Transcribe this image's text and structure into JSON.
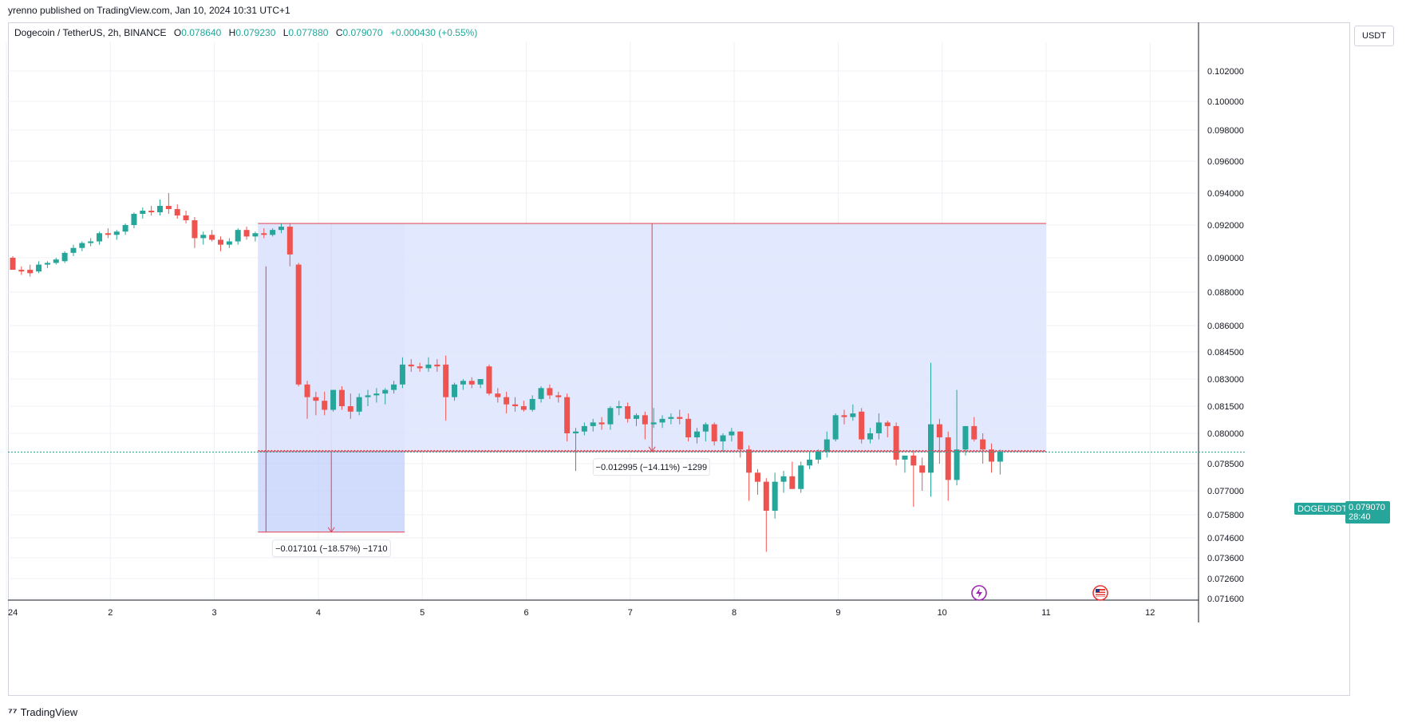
{
  "header": {
    "published": "yrenno published on TradingView.com, Jan 10, 2024 10:31 UTC+1"
  },
  "legend": {
    "symbol": "Dogecoin / TetherUS, 2h, BINANCE",
    "o_label": "O",
    "o_value": "0.078640",
    "h_label": "H",
    "h_value": "0.079230",
    "l_label": "L",
    "l_value": "0.077880",
    "c_label": "C",
    "c_value": "0.079070",
    "change": "+0.000430 (+0.55%)"
  },
  "axis": {
    "currency": "USDT",
    "symbol_tag": "DOGEUSDT",
    "last_price": "0.079070",
    "countdown": "28:40"
  },
  "footer": {
    "brand": "TradingView"
  },
  "colors": {
    "up": "#26a69a",
    "down": "#ef5350",
    "range_fill_light": "#dfe6fd",
    "range_fill_dark": "#c2cffb",
    "range_line": "#e04050",
    "grid": "#eef0f4"
  },
  "icons": [
    "lightning-icon",
    "us-flag-icon",
    "tradingview-logo-icon"
  ],
  "chart_data": {
    "type": "candlestick",
    "x_ticks": [
      {
        "label": "24",
        "day": 1
      },
      {
        "label": "2",
        "day": 2
      },
      {
        "label": "3",
        "day": 3
      },
      {
        "label": "4",
        "day": 4
      },
      {
        "label": "5",
        "day": 5
      },
      {
        "label": "6",
        "day": 6
      },
      {
        "label": "7",
        "day": 7
      },
      {
        "label": "8",
        "day": 8
      },
      {
        "label": "9",
        "day": 9
      },
      {
        "label": "10",
        "day": 10
      },
      {
        "label": "11",
        "day": 11
      },
      {
        "label": "12",
        "day": 12
      }
    ],
    "y_ticks": [
      0.102,
      0.1,
      0.098,
      0.096,
      0.094,
      0.092,
      0.09,
      0.088,
      0.086,
      0.0845,
      0.083,
      0.0815,
      0.08,
      0.0785,
      0.077,
      0.0758,
      0.0746,
      0.0736,
      0.0726,
      0.0716
    ],
    "y_tick_labels": [
      "0.102000",
      "0.100000",
      "0.098000",
      "0.096000",
      "0.094000",
      "0.092000",
      "0.090000",
      "0.088000",
      "0.086000",
      "0.084500",
      "0.083000",
      "0.081500",
      "0.080000",
      "0.078500",
      "0.077000",
      "0.075800",
      "0.074600",
      "0.073600",
      "0.072600",
      "0.071600"
    ],
    "candles": [
      {
        "o": 0.09,
        "h": 0.0901,
        "l": 0.0895,
        "c": 0.0893
      },
      {
        "o": 0.0893,
        "h": 0.0895,
        "l": 0.089,
        "c": 0.0892
      },
      {
        "o": 0.0893,
        "h": 0.0896,
        "l": 0.0889,
        "c": 0.0891
      },
      {
        "o": 0.0892,
        "h": 0.0898,
        "l": 0.0891,
        "c": 0.0896
      },
      {
        "o": 0.0896,
        "h": 0.0898,
        "l": 0.0894,
        "c": 0.0897
      },
      {
        "o": 0.0897,
        "h": 0.09,
        "l": 0.0896,
        "c": 0.0899
      },
      {
        "o": 0.0898,
        "h": 0.0904,
        "l": 0.0897,
        "c": 0.0903
      },
      {
        "o": 0.0903,
        "h": 0.0908,
        "l": 0.0901,
        "c": 0.0906
      },
      {
        "o": 0.0906,
        "h": 0.091,
        "l": 0.0904,
        "c": 0.0909
      },
      {
        "o": 0.0909,
        "h": 0.0912,
        "l": 0.0907,
        "c": 0.091
      },
      {
        "o": 0.091,
        "h": 0.0916,
        "l": 0.0908,
        "c": 0.0915
      },
      {
        "o": 0.0915,
        "h": 0.0918,
        "l": 0.0912,
        "c": 0.0914
      },
      {
        "o": 0.0914,
        "h": 0.0917,
        "l": 0.0911,
        "c": 0.0916
      },
      {
        "o": 0.0916,
        "h": 0.0921,
        "l": 0.0914,
        "c": 0.092
      },
      {
        "o": 0.092,
        "h": 0.0928,
        "l": 0.0918,
        "c": 0.0927
      },
      {
        "o": 0.0927,
        "h": 0.0931,
        "l": 0.0924,
        "c": 0.0929
      },
      {
        "o": 0.0929,
        "h": 0.0932,
        "l": 0.0926,
        "c": 0.0928
      },
      {
        "o": 0.0928,
        "h": 0.0936,
        "l": 0.0926,
        "c": 0.0932
      },
      {
        "o": 0.0932,
        "h": 0.094,
        "l": 0.0927,
        "c": 0.093
      },
      {
        "o": 0.093,
        "h": 0.0933,
        "l": 0.0924,
        "c": 0.0926
      },
      {
        "o": 0.0926,
        "h": 0.0929,
        "l": 0.0921,
        "c": 0.0923
      },
      {
        "o": 0.0923,
        "h": 0.0925,
        "l": 0.0906,
        "c": 0.0912
      },
      {
        "o": 0.0912,
        "h": 0.0916,
        "l": 0.0908,
        "c": 0.0914
      },
      {
        "o": 0.0914,
        "h": 0.0917,
        "l": 0.091,
        "c": 0.0911
      },
      {
        "o": 0.0911,
        "h": 0.0913,
        "l": 0.0904,
        "c": 0.0908
      },
      {
        "o": 0.0908,
        "h": 0.0912,
        "l": 0.0906,
        "c": 0.091
      },
      {
        "o": 0.091,
        "h": 0.0918,
        "l": 0.0908,
        "c": 0.0917
      },
      {
        "o": 0.0917,
        "h": 0.0919,
        "l": 0.0911,
        "c": 0.0913
      },
      {
        "o": 0.0913,
        "h": 0.0916,
        "l": 0.091,
        "c": 0.0915
      },
      {
        "o": 0.0915,
        "h": 0.0918,
        "l": 0.0912,
        "c": 0.0914
      },
      {
        "o": 0.0914,
        "h": 0.0918,
        "l": 0.0913,
        "c": 0.0917
      },
      {
        "o": 0.0917,
        "h": 0.0921,
        "l": 0.0915,
        "c": 0.0919
      },
      {
        "o": 0.0919,
        "h": 0.0921,
        "l": 0.0895,
        "c": 0.0902
      },
      {
        "o": 0.0896,
        "h": 0.0897,
        "l": 0.0826,
        "c": 0.0827
      },
      {
        "o": 0.0827,
        "h": 0.0829,
        "l": 0.0808,
        "c": 0.082
      },
      {
        "o": 0.082,
        "h": 0.0823,
        "l": 0.081,
        "c": 0.0818
      },
      {
        "o": 0.0818,
        "h": 0.0823,
        "l": 0.081,
        "c": 0.0813
      },
      {
        "o": 0.0813,
        "h": 0.0824,
        "l": 0.0812,
        "c": 0.0824
      },
      {
        "o": 0.0824,
        "h": 0.0826,
        "l": 0.0813,
        "c": 0.0815
      },
      {
        "o": 0.0815,
        "h": 0.0822,
        "l": 0.0808,
        "c": 0.0812
      },
      {
        "o": 0.0812,
        "h": 0.0822,
        "l": 0.081,
        "c": 0.082
      },
      {
        "o": 0.082,
        "h": 0.0824,
        "l": 0.0815,
        "c": 0.0821
      },
      {
        "o": 0.0821,
        "h": 0.0825,
        "l": 0.0817,
        "c": 0.0822
      },
      {
        "o": 0.0822,
        "h": 0.0825,
        "l": 0.0816,
        "c": 0.0824
      },
      {
        "o": 0.0824,
        "h": 0.0829,
        "l": 0.0822,
        "c": 0.0827
      },
      {
        "o": 0.0827,
        "h": 0.0842,
        "l": 0.0825,
        "c": 0.0838
      },
      {
        "o": 0.0838,
        "h": 0.0841,
        "l": 0.0834,
        "c": 0.0837
      },
      {
        "o": 0.0837,
        "h": 0.0839,
        "l": 0.0834,
        "c": 0.0836
      },
      {
        "o": 0.0836,
        "h": 0.0842,
        "l": 0.0834,
        "c": 0.0838
      },
      {
        "o": 0.0838,
        "h": 0.0841,
        "l": 0.0834,
        "c": 0.0837
      },
      {
        "o": 0.0838,
        "h": 0.0843,
        "l": 0.0807,
        "c": 0.082
      },
      {
        "o": 0.082,
        "h": 0.0828,
        "l": 0.0818,
        "c": 0.0827
      },
      {
        "o": 0.0827,
        "h": 0.083,
        "l": 0.0824,
        "c": 0.0829
      },
      {
        "o": 0.0829,
        "h": 0.0831,
        "l": 0.0825,
        "c": 0.0827
      },
      {
        "o": 0.0827,
        "h": 0.083,
        "l": 0.0825,
        "c": 0.083
      },
      {
        "o": 0.0837,
        "h": 0.0838,
        "l": 0.0821,
        "c": 0.0822
      },
      {
        "o": 0.0822,
        "h": 0.0825,
        "l": 0.0817,
        "c": 0.082
      },
      {
        "o": 0.082,
        "h": 0.0823,
        "l": 0.0811,
        "c": 0.0816
      },
      {
        "o": 0.0816,
        "h": 0.082,
        "l": 0.0812,
        "c": 0.0815
      },
      {
        "o": 0.0815,
        "h": 0.0818,
        "l": 0.0812,
        "c": 0.0813
      },
      {
        "o": 0.0813,
        "h": 0.0821,
        "l": 0.0812,
        "c": 0.0819
      },
      {
        "o": 0.0819,
        "h": 0.0826,
        "l": 0.0817,
        "c": 0.0825
      },
      {
        "o": 0.0825,
        "h": 0.0827,
        "l": 0.0819,
        "c": 0.0821
      },
      {
        "o": 0.0821,
        "h": 0.0823,
        "l": 0.0817,
        "c": 0.082
      },
      {
        "o": 0.082,
        "h": 0.0822,
        "l": 0.0796,
        "c": 0.08
      },
      {
        "o": 0.08,
        "h": 0.0803,
        "l": 0.0781,
        "c": 0.0801
      },
      {
        "o": 0.0801,
        "h": 0.0806,
        "l": 0.0799,
        "c": 0.0804
      },
      {
        "o": 0.0804,
        "h": 0.0808,
        "l": 0.0801,
        "c": 0.0806
      },
      {
        "o": 0.0806,
        "h": 0.0809,
        "l": 0.0802,
        "c": 0.0805
      },
      {
        "o": 0.0805,
        "h": 0.0815,
        "l": 0.0802,
        "c": 0.0814
      },
      {
        "o": 0.0814,
        "h": 0.0818,
        "l": 0.081,
        "c": 0.0815
      },
      {
        "o": 0.0815,
        "h": 0.0817,
        "l": 0.0806,
        "c": 0.0808
      },
      {
        "o": 0.0808,
        "h": 0.0811,
        "l": 0.0804,
        "c": 0.081
      },
      {
        "o": 0.081,
        "h": 0.0812,
        "l": 0.0797,
        "c": 0.0805
      },
      {
        "o": 0.0805,
        "h": 0.0814,
        "l": 0.0803,
        "c": 0.0806
      },
      {
        "o": 0.0806,
        "h": 0.081,
        "l": 0.0803,
        "c": 0.0808
      },
      {
        "o": 0.0808,
        "h": 0.0811,
        "l": 0.0805,
        "c": 0.0809
      },
      {
        "o": 0.0809,
        "h": 0.0813,
        "l": 0.0805,
        "c": 0.0808
      },
      {
        "o": 0.0808,
        "h": 0.0811,
        "l": 0.0796,
        "c": 0.0798
      },
      {
        "o": 0.0798,
        "h": 0.0803,
        "l": 0.0795,
        "c": 0.0801
      },
      {
        "o": 0.0801,
        "h": 0.0806,
        "l": 0.0796,
        "c": 0.0805
      },
      {
        "o": 0.0805,
        "h": 0.0806,
        "l": 0.0794,
        "c": 0.0796
      },
      {
        "o": 0.0796,
        "h": 0.08,
        "l": 0.0791,
        "c": 0.0799
      },
      {
        "o": 0.0799,
        "h": 0.0803,
        "l": 0.0796,
        "c": 0.0801
      },
      {
        "o": 0.0801,
        "h": 0.0801,
        "l": 0.0788,
        "c": 0.0792
      },
      {
        "o": 0.0792,
        "h": 0.0794,
        "l": 0.0765,
        "c": 0.078
      },
      {
        "o": 0.078,
        "h": 0.0782,
        "l": 0.0768,
        "c": 0.0775
      },
      {
        "o": 0.0775,
        "h": 0.0777,
        "l": 0.0739,
        "c": 0.076
      },
      {
        "o": 0.076,
        "h": 0.078,
        "l": 0.0756,
        "c": 0.0775
      },
      {
        "o": 0.0775,
        "h": 0.0781,
        "l": 0.0769,
        "c": 0.0778
      },
      {
        "o": 0.0778,
        "h": 0.0786,
        "l": 0.0773,
        "c": 0.0771
      },
      {
        "o": 0.0771,
        "h": 0.0786,
        "l": 0.0769,
        "c": 0.0784
      },
      {
        "o": 0.0784,
        "h": 0.0791,
        "l": 0.0782,
        "c": 0.0787
      },
      {
        "o": 0.0787,
        "h": 0.0792,
        "l": 0.0785,
        "c": 0.0791
      },
      {
        "o": 0.0791,
        "h": 0.0801,
        "l": 0.0788,
        "c": 0.0797
      },
      {
        "o": 0.0797,
        "h": 0.0811,
        "l": 0.0796,
        "c": 0.081
      },
      {
        "o": 0.081,
        "h": 0.0813,
        "l": 0.0805,
        "c": 0.0809
      },
      {
        "o": 0.0809,
        "h": 0.0816,
        "l": 0.0807,
        "c": 0.0811
      },
      {
        "o": 0.0812,
        "h": 0.0814,
        "l": 0.0795,
        "c": 0.0797
      },
      {
        "o": 0.0797,
        "h": 0.0803,
        "l": 0.0795,
        "c": 0.08
      },
      {
        "o": 0.08,
        "h": 0.0811,
        "l": 0.0797,
        "c": 0.0806
      },
      {
        "o": 0.0806,
        "h": 0.0807,
        "l": 0.0798,
        "c": 0.0804
      },
      {
        "o": 0.0804,
        "h": 0.0806,
        "l": 0.0784,
        "c": 0.0787
      },
      {
        "o": 0.0787,
        "h": 0.0789,
        "l": 0.078,
        "c": 0.0789
      },
      {
        "o": 0.0789,
        "h": 0.0791,
        "l": 0.0762,
        "c": 0.0784
      },
      {
        "o": 0.0784,
        "h": 0.0788,
        "l": 0.077,
        "c": 0.078
      },
      {
        "o": 0.078,
        "h": 0.0839,
        "l": 0.0767,
        "c": 0.0805
      },
      {
        "o": 0.0805,
        "h": 0.0808,
        "l": 0.0785,
        "c": 0.0798
      },
      {
        "o": 0.0798,
        "h": 0.0801,
        "l": 0.0765,
        "c": 0.0776
      },
      {
        "o": 0.0776,
        "h": 0.0824,
        "l": 0.0773,
        "c": 0.0792
      },
      {
        "o": 0.0792,
        "h": 0.0804,
        "l": 0.0789,
        "c": 0.0804
      },
      {
        "o": 0.0804,
        "h": 0.0809,
        "l": 0.0796,
        "c": 0.0797
      },
      {
        "o": 0.0797,
        "h": 0.08,
        "l": 0.0785,
        "c": 0.0792
      },
      {
        "o": 0.0792,
        "h": 0.0795,
        "l": 0.078,
        "c": 0.0786
      },
      {
        "o": 0.0786,
        "h": 0.0792,
        "l": 0.0779,
        "c": 0.0791
      }
    ],
    "first_candle_day": 1.0,
    "candle_step_days": 0.0833,
    "measure_tools": [
      {
        "from_day": 3.42,
        "to_day": 4.83,
        "top": 0.0921,
        "bottom": 0.0749,
        "label": "−0.017101 (−18.57%) −1710"
      },
      {
        "from_day": 3.42,
        "to_day": 11.0,
        "top": 0.0921,
        "bottom": 0.0791,
        "label": "−0.012995 (−14.11%) −1299"
      }
    ],
    "last_price": 0.07907
  }
}
